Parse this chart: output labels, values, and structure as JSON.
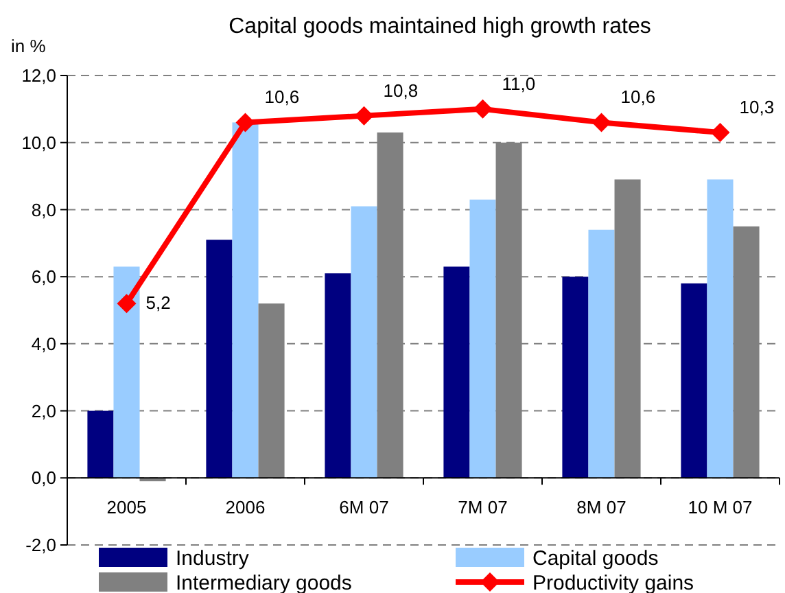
{
  "chart_data": {
    "type": "bar",
    "title": "Capital goods maintained high growth rates",
    "ylabel": "in %",
    "categories": [
      "2005",
      "2006",
      "6M 07",
      "7M 07",
      "8M 07",
      "10 M 07"
    ],
    "series": [
      {
        "name": "Industry",
        "color": "#000080",
        "values": [
          2.0,
          7.1,
          6.1,
          6.3,
          6.0,
          5.8
        ]
      },
      {
        "name": "Capital goods",
        "color": "#99ccff",
        "values": [
          6.3,
          10.6,
          8.1,
          8.3,
          7.4,
          8.9
        ]
      },
      {
        "name": "Intermediary goods",
        "color": "#808080",
        "values": [
          -0.1,
          5.2,
          10.3,
          10.0,
          8.9,
          7.5
        ]
      },
      {
        "name": "Productivity gains",
        "type": "line",
        "color": "#ff0000",
        "marker": "diamond",
        "values": [
          5.2,
          10.6,
          10.8,
          11.0,
          10.6,
          10.3
        ],
        "value_labels": [
          "5,2",
          "10,6",
          "10,8",
          "11,0",
          "10,6",
          "10,3"
        ]
      }
    ],
    "ylim": [
      -2,
      12
    ],
    "yticks": [
      {
        "value": -2,
        "label": "-2,0"
      },
      {
        "value": 0,
        "label": "0,0"
      },
      {
        "value": 2,
        "label": "2,0"
      },
      {
        "value": 4,
        "label": "4,0"
      },
      {
        "value": 6,
        "label": "6,0"
      },
      {
        "value": 8,
        "label": "8,0"
      },
      {
        "value": 10,
        "label": "10,0"
      },
      {
        "value": 12,
        "label": "12,0"
      }
    ],
    "grid": "y",
    "legend": "bottom"
  }
}
